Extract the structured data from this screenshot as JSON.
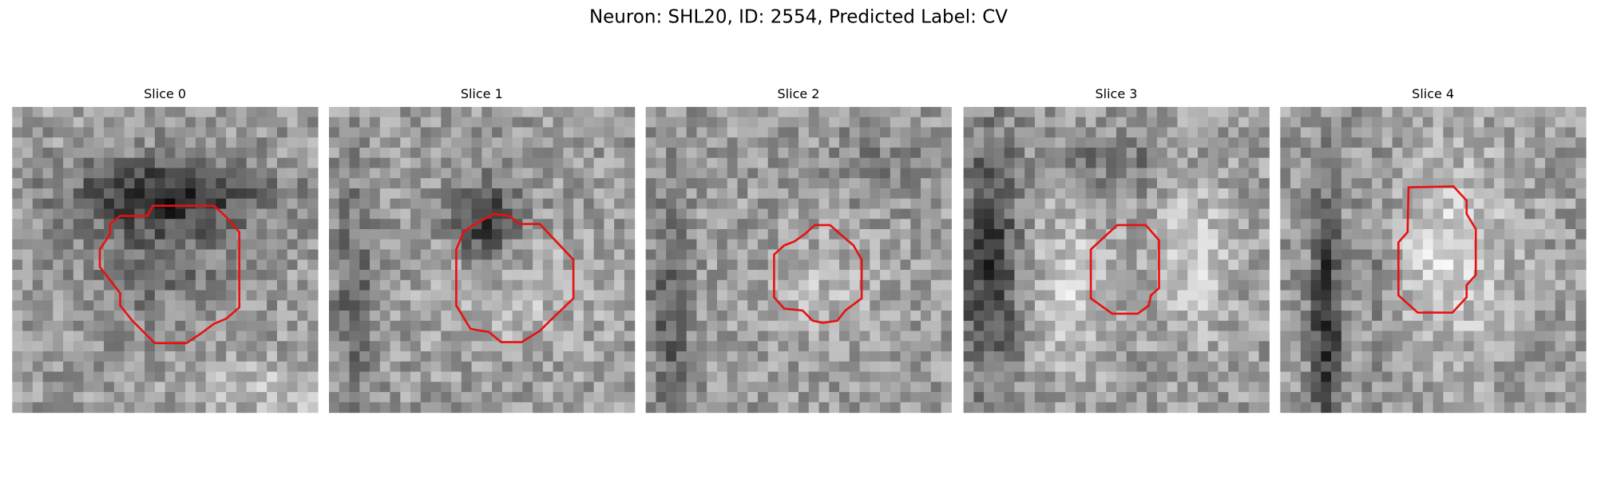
{
  "title": "Neuron: SHL20, ID: 2554, Predicted Label: CV",
  "panels": [
    {
      "title": "Slice 0"
    },
    {
      "title": "Slice 1"
    },
    {
      "title": "Slice 2"
    },
    {
      "title": "Slice 3"
    },
    {
      "title": "Slice 4"
    }
  ]
}
